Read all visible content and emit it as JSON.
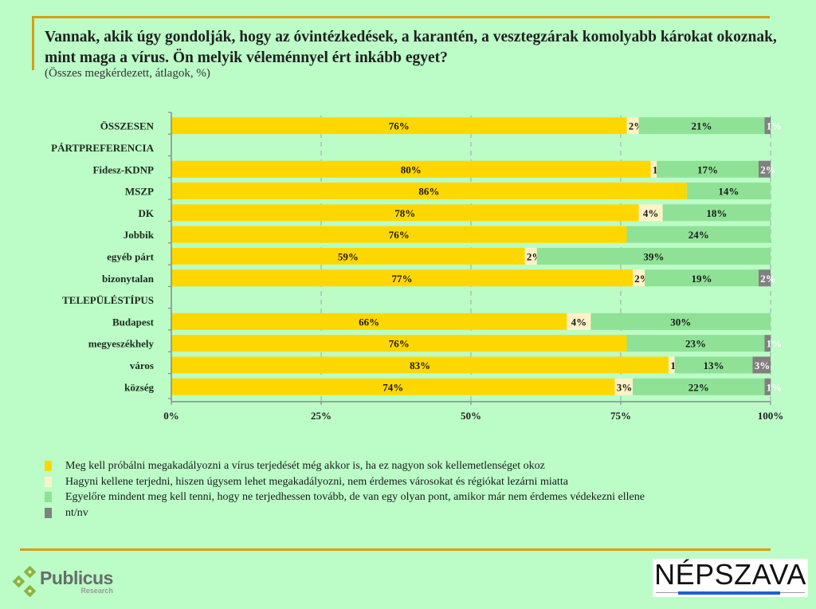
{
  "header": {
    "title": "Vannak, akik úgy gondolják, hogy az óvintézkedések, a karantén, a vesztegzárak komolyabb károkat okoznak, mint maga a vírus. Ön melyik véleménnyel ért inkább egyet?",
    "subtitle": "(Összes megkérdezett, átlagok, %)"
  },
  "chart_data": {
    "type": "bar",
    "orientation": "horizontal",
    "stacked": true,
    "title": "Vannak, akik úgy gondolják, hogy az óvintézkedések, a karantén, a vesztegzárak komolyabb károkat okoznak, mint maga a vírus. Ön melyik véleménnyel ért inkább egyet?",
    "subtitle": "(Összes megkérdezett, átlagok, %)",
    "xlabel": "",
    "ylabel": "",
    "xlim": [
      0,
      100
    ],
    "x_ticks": [
      "0%",
      "25%",
      "50%",
      "75%",
      "100%"
    ],
    "grid": "vertical dashed",
    "legend_position": "bottom",
    "categories": [
      "ÖSSZESEN",
      "PÁRTPREFERENCIA",
      "Fidesz-KDNP",
      "MSZP",
      "DK",
      "Jobbik",
      "egyéb párt",
      "bizonytalan",
      "TELEPÜLÉSTÍPUS",
      "Budapest",
      "megyeszékhely",
      "város",
      "község"
    ],
    "series": [
      {
        "name": "Meg kell próbálni megakadályozni a vírus terjedését még akkor is, ha ez nagyon sok kellemetlenséget okoz",
        "color": "#ffd700",
        "values": [
          76,
          null,
          80,
          86,
          78,
          76,
          59,
          77,
          null,
          66,
          76,
          83,
          74
        ]
      },
      {
        "name": "Hagyni kellene terjedni, hiszen úgysem lehet megakadályozni, nem érdemes városokat és régiókat lezárni miatta",
        "color": "#fff2c6",
        "values": [
          2,
          null,
          1,
          0,
          4,
          0,
          2,
          2,
          null,
          4,
          0,
          1,
          3
        ]
      },
      {
        "name": "Egyelőre mindent meg kell tenni, hogy ne terjedhessen tovább, de van egy olyan pont, amikor már nem érdemes védekezni ellene",
        "color": "#8fe196",
        "values": [
          21,
          null,
          17,
          14,
          18,
          24,
          39,
          19,
          null,
          30,
          23,
          13,
          22
        ]
      },
      {
        "name": "nt/nv",
        "color": "#808080",
        "values": [
          1,
          null,
          2,
          0,
          0,
          0,
          0,
          2,
          null,
          0,
          1,
          3,
          1
        ]
      }
    ]
  },
  "legend": [
    {
      "label": "Meg kell próbálni megakadályozni a vírus terjedését még akkor is, ha ez nagyon sok kellemetlenséget okoz",
      "color": "#ffd700"
    },
    {
      "label": "Hagyni kellene terjedni, hiszen úgysem lehet megakadályozni, nem érdemes városokat és régiókat lezárni miatta",
      "color": "#fff2c6"
    },
    {
      "label": "Egyelőre mindent meg kell tenni, hogy ne terjedhessen tovább, de van egy olyan pont, amikor már nem érdemes védekezni ellene",
      "color": "#8fe196"
    },
    {
      "label": "nt/nv",
      "color": "#808080"
    }
  ],
  "footer": {
    "publicus_name": "Publicus",
    "publicus_sub": "Research",
    "nepszava_name": "NÉPSZAVA"
  }
}
